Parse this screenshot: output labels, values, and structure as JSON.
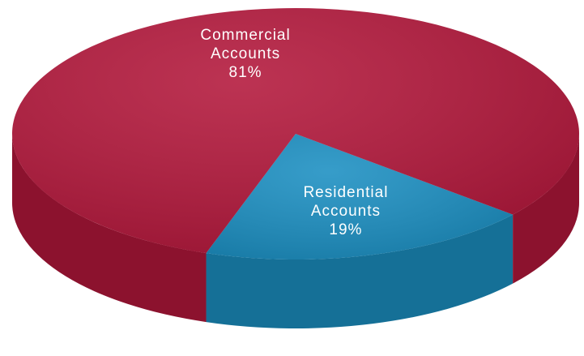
{
  "chart_data": {
    "type": "pie",
    "categories": [
      "Commercial Accounts",
      "Residential Accounts"
    ],
    "values": [
      81,
      19
    ],
    "value_labels": [
      "81%",
      "19%"
    ],
    "colors": [
      "#b3173b",
      "#1b8fc2"
    ]
  }
}
